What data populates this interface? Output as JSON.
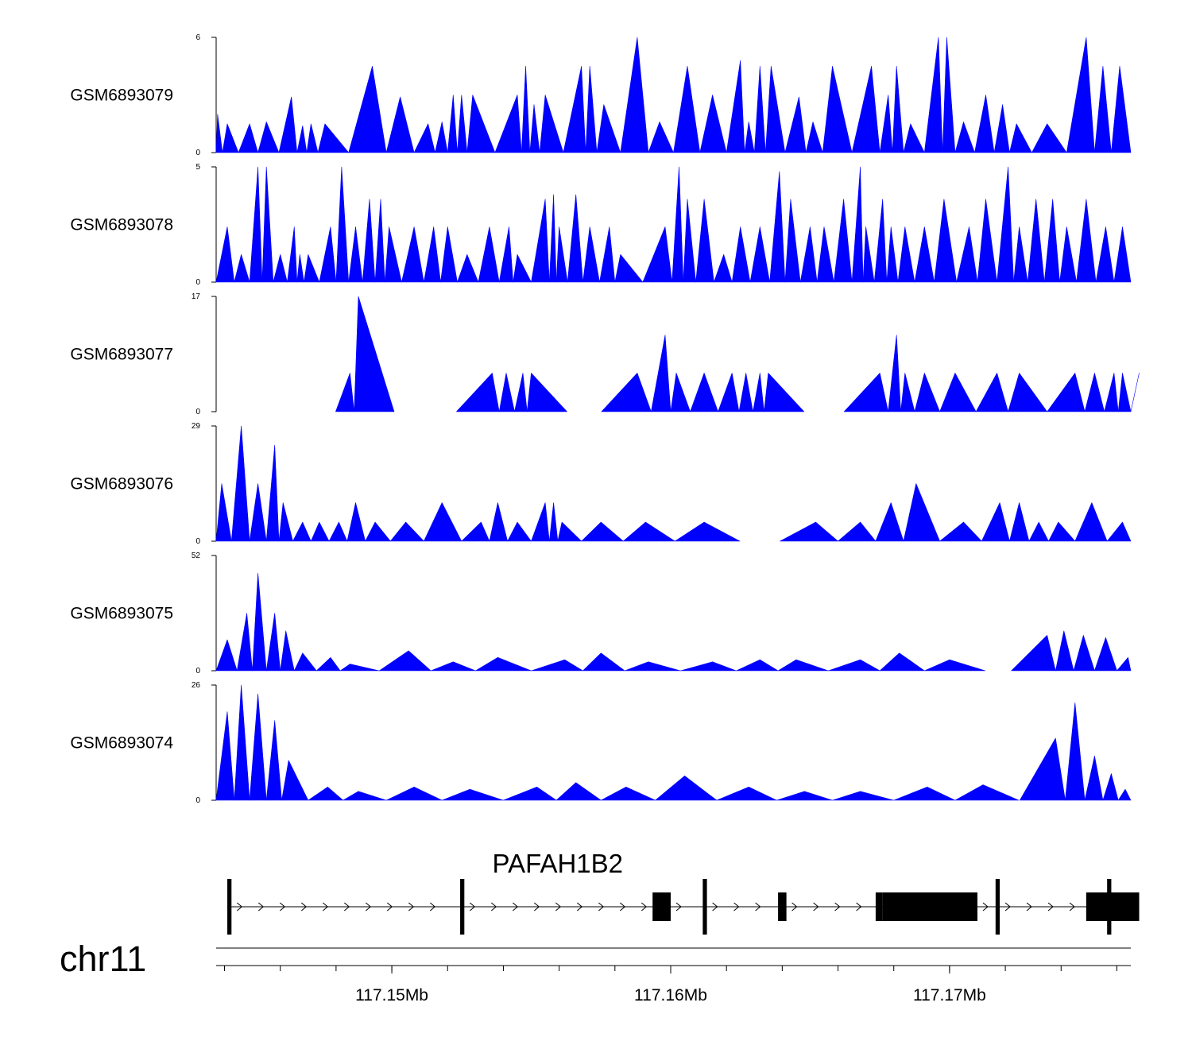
{
  "chart_data": {
    "type": "area",
    "title": "",
    "chromosome": "chr11",
    "region_mb": [
      117.1437,
      117.1765
    ],
    "x_ticks_mb": [
      117.15,
      117.16,
      117.17
    ],
    "x_tick_labels": [
      "117.15Mb",
      "117.16Mb",
      "117.17Mb"
    ],
    "minor_tick_step_mb": 0.002,
    "fill_color": "#0000ff",
    "tracks": [
      {
        "name": "GSM6893079",
        "ylim": [
          0,
          6
        ],
        "ymin_label": "0",
        "ymax_label": "6",
        "peaks": [
          [
            117.14375,
            2.0
          ],
          [
            117.1441,
            1.5
          ],
          [
            117.1449,
            1.5
          ],
          [
            117.1455,
            1.6
          ],
          [
            117.1464,
            2.9
          ],
          [
            117.1468,
            1.4
          ],
          [
            117.1471,
            1.5
          ],
          [
            117.1476,
            1.5
          ],
          [
            117.1493,
            4.5
          ],
          [
            117.1503,
            2.9
          ],
          [
            117.1513,
            1.5
          ],
          [
            117.1518,
            1.6
          ],
          [
            117.1522,
            3.0
          ],
          [
            117.1525,
            3.0
          ],
          [
            117.1529,
            3.0
          ],
          [
            117.1545,
            3.0
          ],
          [
            117.1548,
            4.5
          ],
          [
            117.1551,
            2.5
          ],
          [
            117.1555,
            3.0
          ],
          [
            117.1568,
            4.5
          ],
          [
            117.1571,
            4.5
          ],
          [
            117.1576,
            2.5
          ],
          [
            117.1588,
            6.0
          ],
          [
            117.1596,
            1.6
          ],
          [
            117.1606,
            4.5
          ],
          [
            117.1615,
            3.0
          ],
          [
            117.1625,
            4.8
          ],
          [
            117.1628,
            1.6
          ],
          [
            117.1632,
            4.5
          ],
          [
            117.1636,
            4.5
          ],
          [
            117.1646,
            2.9
          ],
          [
            117.1651,
            1.6
          ],
          [
            117.1658,
            4.5
          ],
          [
            117.1672,
            4.5
          ],
          [
            117.1678,
            3.0
          ],
          [
            117.1681,
            4.5
          ],
          [
            117.1686,
            1.5
          ],
          [
            117.1696,
            6.0
          ],
          [
            117.1699,
            6.0
          ],
          [
            117.1705,
            1.6
          ],
          [
            117.1713,
            3.0
          ],
          [
            117.1719,
            2.5
          ],
          [
            117.1724,
            1.5
          ],
          [
            117.1735,
            1.5
          ],
          [
            117.1749,
            6.0
          ],
          [
            117.1755,
            4.5
          ],
          [
            117.1761,
            4.5
          ]
        ]
      },
      {
        "name": "GSM6893078",
        "ylim": [
          0,
          5
        ],
        "ymin_label": "0",
        "ymax_label": "5",
        "peaks": [
          [
            117.1441,
            2.4
          ],
          [
            117.1446,
            1.2
          ],
          [
            117.1452,
            5.0
          ],
          [
            117.1455,
            5.0
          ],
          [
            117.146,
            1.2
          ],
          [
            117.1465,
            2.4
          ],
          [
            117.1467,
            1.2
          ],
          [
            117.147,
            1.2
          ],
          [
            117.1478,
            2.4
          ],
          [
            117.1482,
            5.0
          ],
          [
            117.1487,
            2.4
          ],
          [
            117.1492,
            3.6
          ],
          [
            117.1496,
            3.6
          ],
          [
            117.1499,
            2.4
          ],
          [
            117.1508,
            2.4
          ],
          [
            117.1515,
            2.4
          ],
          [
            117.152,
            2.4
          ],
          [
            117.1527,
            1.2
          ],
          [
            117.1535,
            2.4
          ],
          [
            117.1542,
            2.4
          ],
          [
            117.1545,
            1.2
          ],
          [
            117.1555,
            3.6
          ],
          [
            117.1558,
            3.8
          ],
          [
            117.156,
            2.4
          ],
          [
            117.1566,
            3.8
          ],
          [
            117.1571,
            2.4
          ],
          [
            117.1578,
            2.4
          ],
          [
            117.1582,
            1.2
          ],
          [
            117.1598,
            2.4
          ],
          [
            117.1603,
            5.0
          ],
          [
            117.1606,
            3.6
          ],
          [
            117.1612,
            3.6
          ],
          [
            117.1619,
            1.2
          ],
          [
            117.1625,
            2.4
          ],
          [
            117.1632,
            2.4
          ],
          [
            117.1639,
            4.8
          ],
          [
            117.1643,
            3.6
          ],
          [
            117.165,
            2.4
          ],
          [
            117.1655,
            2.4
          ],
          [
            117.1662,
            3.6
          ],
          [
            117.1668,
            5.0
          ],
          [
            117.167,
            2.4
          ],
          [
            117.1676,
            3.6
          ],
          [
            117.1679,
            2.4
          ],
          [
            117.1684,
            2.4
          ],
          [
            117.1691,
            2.4
          ],
          [
            117.1698,
            3.6
          ],
          [
            117.1707,
            2.4
          ],
          [
            117.1713,
            3.6
          ],
          [
            117.1721,
            5.0
          ],
          [
            117.1725,
            2.4
          ],
          [
            117.1731,
            3.6
          ],
          [
            117.1737,
            3.6
          ],
          [
            117.1742,
            2.4
          ],
          [
            117.1749,
            3.6
          ],
          [
            117.1756,
            2.4
          ],
          [
            117.1762,
            2.4
          ]
        ]
      },
      {
        "name": "GSM6893077",
        "ylim": [
          0,
          17
        ],
        "ymin_label": "0",
        "ymax_label": "17",
        "peaks": [
          [
            117.1485,
            5.7
          ],
          [
            117.1488,
            17.0
          ],
          [
            117.1536,
            5.7
          ],
          [
            117.1541,
            5.7
          ],
          [
            117.1547,
            5.7
          ],
          [
            117.155,
            5.7
          ],
          [
            117.1588,
            5.7
          ],
          [
            117.1598,
            11.3
          ],
          [
            117.1602,
            5.7
          ],
          [
            117.1612,
            5.7
          ],
          [
            117.1622,
            5.7
          ],
          [
            117.1627,
            5.7
          ],
          [
            117.1632,
            5.7
          ],
          [
            117.1635,
            5.7
          ],
          [
            117.1675,
            5.7
          ],
          [
            117.1681,
            11.3
          ],
          [
            117.1684,
            5.7
          ],
          [
            117.1691,
            5.7
          ],
          [
            117.1702,
            5.7
          ],
          [
            117.1717,
            5.7
          ],
          [
            117.1725,
            5.7
          ],
          [
            117.1745,
            5.7
          ],
          [
            117.1752,
            5.7
          ],
          [
            117.1759,
            5.7
          ],
          [
            117.1762,
            5.7
          ],
          [
            117.1768,
            5.7
          ]
        ]
      },
      {
        "name": "GSM6893076",
        "ylim": [
          0,
          29
        ],
        "ymin_label": "0",
        "ymax_label": "29",
        "peaks": [
          [
            117.1439,
            14.5
          ],
          [
            117.1446,
            29.0
          ],
          [
            117.1452,
            14.5
          ],
          [
            117.1458,
            24.2
          ],
          [
            117.1461,
            9.7
          ],
          [
            117.1468,
            4.8
          ],
          [
            117.1474,
            4.8
          ],
          [
            117.1481,
            4.8
          ],
          [
            117.1487,
            9.7
          ],
          [
            117.1494,
            4.8
          ],
          [
            117.1505,
            4.8
          ],
          [
            117.1518,
            9.7
          ],
          [
            117.1532,
            4.8
          ],
          [
            117.1538,
            9.7
          ],
          [
            117.1545,
            4.8
          ],
          [
            117.1555,
            9.7
          ],
          [
            117.1558,
            9.7
          ],
          [
            117.1561,
            4.8
          ],
          [
            117.1575,
            4.8
          ],
          [
            117.1591,
            4.8
          ],
          [
            117.1612,
            4.8
          ],
          [
            117.1652,
            4.8
          ],
          [
            117.1668,
            4.8
          ],
          [
            117.1679,
            9.7
          ],
          [
            117.1688,
            14.5
          ],
          [
            117.1705,
            4.8
          ],
          [
            117.1718,
            9.7
          ],
          [
            117.1725,
            9.7
          ],
          [
            117.1732,
            4.8
          ],
          [
            117.1739,
            4.8
          ],
          [
            117.1751,
            9.7
          ],
          [
            117.1762,
            4.8
          ]
        ]
      },
      {
        "name": "GSM6893075",
        "ylim": [
          0,
          52
        ],
        "ymin_label": "0",
        "ymax_label": "52",
        "peaks": [
          [
            117.1441,
            14.0
          ],
          [
            117.1448,
            26.0
          ],
          [
            117.1452,
            44.0
          ],
          [
            117.1458,
            26.0
          ],
          [
            117.1462,
            18.0
          ],
          [
            117.1468,
            8.0
          ],
          [
            117.1478,
            6.0
          ],
          [
            117.1485,
            3.0
          ],
          [
            117.1506,
            9.0
          ],
          [
            117.1522,
            4.0
          ],
          [
            117.1538,
            6.0
          ],
          [
            117.1562,
            5.0
          ],
          [
            117.1575,
            8.0
          ],
          [
            117.1592,
            4.0
          ],
          [
            117.1615,
            4.0
          ],
          [
            117.1632,
            5.0
          ],
          [
            117.1645,
            5.0
          ],
          [
            117.1668,
            5.0
          ],
          [
            117.1682,
            8.0
          ],
          [
            117.17,
            5.0
          ],
          [
            117.1735,
            16.0
          ],
          [
            117.1741,
            18.0
          ],
          [
            117.1748,
            16.0
          ],
          [
            117.1756,
            15.0
          ],
          [
            117.1764,
            6.0
          ]
        ]
      },
      {
        "name": "GSM6893074",
        "ylim": [
          0,
          26
        ],
        "ymin_label": "0",
        "ymax_label": "26",
        "peaks": [
          [
            117.1441,
            20.0
          ],
          [
            117.1446,
            26.0
          ],
          [
            117.1452,
            24.0
          ],
          [
            117.1458,
            18.0
          ],
          [
            117.1463,
            9.0
          ],
          [
            117.1477,
            3.0
          ],
          [
            117.1488,
            2.0
          ],
          [
            117.1508,
            3.0
          ],
          [
            117.1528,
            2.5
          ],
          [
            117.1552,
            3.0
          ],
          [
            117.1566,
            4.0
          ],
          [
            117.1584,
            3.0
          ],
          [
            117.1605,
            5.5
          ],
          [
            117.1628,
            3.0
          ],
          [
            117.1648,
            2.0
          ],
          [
            117.1668,
            2.0
          ],
          [
            117.1692,
            3.0
          ],
          [
            117.1712,
            3.5
          ],
          [
            117.1738,
            14.0
          ],
          [
            117.1745,
            22.0
          ],
          [
            117.1752,
            10.0
          ],
          [
            117.1758,
            6.0
          ],
          [
            117.1763,
            2.5
          ]
        ]
      }
    ],
    "gene": {
      "name": "PAFAH1B2",
      "strand": "+",
      "exons_mb": [
        [
          117.1441,
          117.14425
        ],
        [
          117.15245,
          117.1526
        ],
        [
          117.15935,
          117.16
        ],
        [
          117.16115,
          117.1613
        ],
        [
          117.16385,
          117.16415
        ],
        [
          117.16735,
          117.1676
        ],
        [
          117.1676,
          117.171
        ],
        [
          117.17165,
          117.1718
        ],
        [
          117.1749,
          117.1768
        ],
        [
          117.17565,
          117.1758
        ]
      ]
    }
  }
}
